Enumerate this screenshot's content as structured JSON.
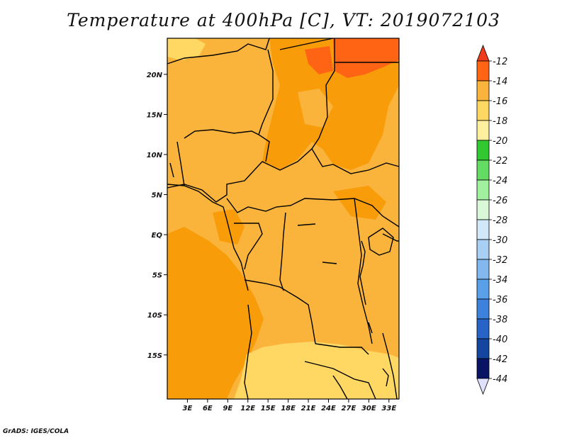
{
  "title": "Temperature at 400hPa [C], VT: 2019072103",
  "credit": "GrADS: IGES/COLA",
  "map": {
    "lon_range": [
      0,
      34.5
    ],
    "lat_range": [
      -20.5,
      24.5
    ],
    "lon_ticks": [
      {
        "value": 3,
        "label": "3E"
      },
      {
        "value": 6,
        "label": "6E"
      },
      {
        "value": 9,
        "label": "9E"
      },
      {
        "value": 12,
        "label": "12E"
      },
      {
        "value": 15,
        "label": "15E"
      },
      {
        "value": 18,
        "label": "18E"
      },
      {
        "value": 21,
        "label": "21E"
      },
      {
        "value": 24,
        "label": "24E"
      },
      {
        "value": 27,
        "label": "27E"
      },
      {
        "value": 30,
        "label": "30E"
      },
      {
        "value": 33,
        "label": "33E"
      }
    ],
    "lat_ticks": [
      {
        "value": 20,
        "label": "20N"
      },
      {
        "value": 15,
        "label": "15N"
      },
      {
        "value": 10,
        "label": "10N"
      },
      {
        "value": 5,
        "label": "5N"
      },
      {
        "value": 0,
        "label": "EQ"
      },
      {
        "value": -5,
        "label": "5S"
      },
      {
        "value": -10,
        "label": "10S"
      },
      {
        "value": -15,
        "label": "15S"
      }
    ]
  },
  "colorbar": {
    "top_color": "#f03c1e",
    "bottom_color": "#e0e0ff",
    "levels": [
      {
        "label": "-12",
        "color": "#ff6414"
      },
      {
        "label": "-14",
        "color": "#f89c0a"
      },
      {
        "label": "-16",
        "color": "#fab43c"
      },
      {
        "label": "-18",
        "color": "#ffd864"
      },
      {
        "label": "-20",
        "color": "#fff0a0"
      },
      {
        "label": "-22",
        "color": "#32c832"
      },
      {
        "label": "-24",
        "color": "#64dc64"
      },
      {
        "label": "-26",
        "color": "#a0f0a0"
      },
      {
        "label": "-28",
        "color": "#d8f8d8"
      },
      {
        "label": "-30",
        "color": "#d0e8f8"
      },
      {
        "label": "-32",
        "color": "#a8d0f4"
      },
      {
        "label": "-34",
        "color": "#82b8ee"
      },
      {
        "label": "-36",
        "color": "#5aa0e8"
      },
      {
        "label": "-38",
        "color": "#3c82dc"
      },
      {
        "label": "-40",
        "color": "#2864c8"
      },
      {
        "label": "-42",
        "color": "#1446a0"
      },
      {
        "label": "-44",
        "color": "#0a1464"
      }
    ]
  }
}
